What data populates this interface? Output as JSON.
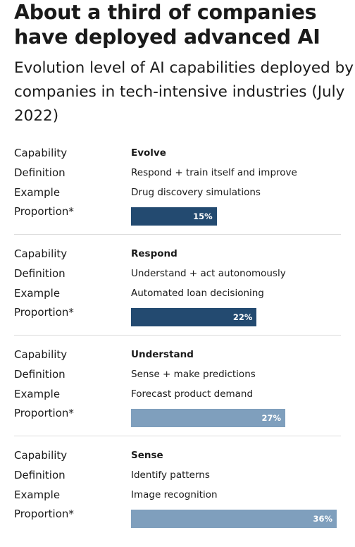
{
  "title": "About a third of companies have deployed advanced AI",
  "subtitle": "Evolution level of AI capabilities deployed by companies in tech-intensive industries (July 2022)",
  "labels": {
    "capability": "Capability",
    "definition": "Definition",
    "example": "Example",
    "proportion": "Proportion*"
  },
  "colors": {
    "dark_bar": "#234a70",
    "light_bar": "#7f9fbd"
  },
  "chart_data": {
    "type": "bar",
    "orientation": "horizontal",
    "categories": [
      "Evolve",
      "Respond",
      "Understand",
      "Sense"
    ],
    "values": [
      15,
      22,
      27,
      36
    ],
    "value_labels": [
      "15%",
      "22%",
      "27%",
      "36%"
    ],
    "unit": "%",
    "rows": [
      {
        "capability": "Evolve",
        "definition": "Respond + train itself and improve",
        "example": "Drug discovery simulations",
        "value": 15,
        "value_label": "15%",
        "color": "#234a70"
      },
      {
        "capability": "Respond",
        "definition": "Understand + act autonomously",
        "example": "Automated loan decisioning",
        "value": 22,
        "value_label": "22%",
        "color": "#234a70"
      },
      {
        "capability": "Understand",
        "definition": "Sense + make predictions",
        "example": "Forecast product demand",
        "value": 27,
        "value_label": "27%",
        "color": "#7f9fbd"
      },
      {
        "capability": "Sense",
        "definition": "Identify patterns",
        "example": "Image recognition",
        "value": 36,
        "value_label": "36%",
        "color": "#7f9fbd"
      }
    ]
  }
}
